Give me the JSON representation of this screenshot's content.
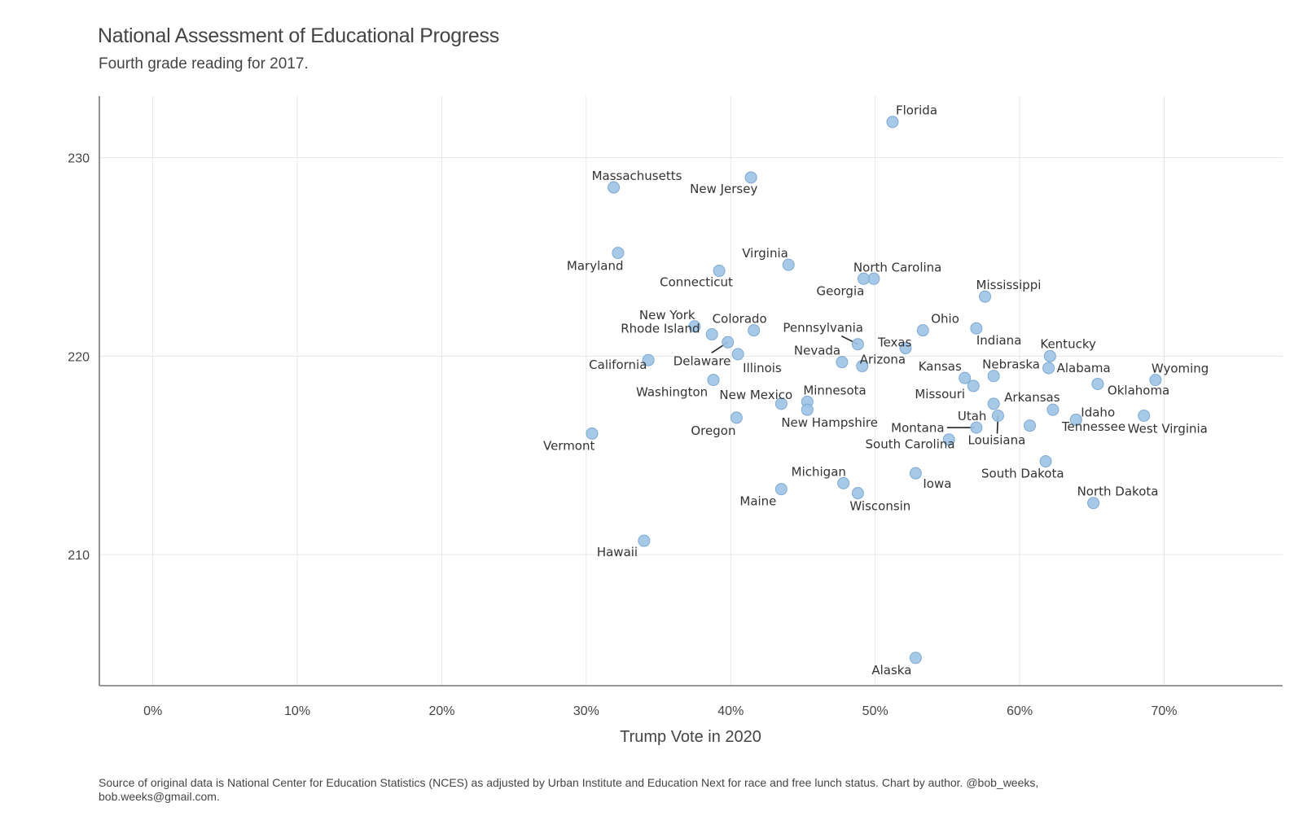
{
  "chart_data": {
    "type": "scatter",
    "title": "National Assessment of Educational Progress",
    "subtitle": "Fourth grade reading for 2017.",
    "xlabel": "Trump Vote in 2020",
    "ylabel": "",
    "xlim": [
      -0.037,
      0.782
    ],
    "ylim": [
      203.4,
      233.1
    ],
    "x_ticks": [
      0,
      0.1,
      0.2,
      0.3,
      0.4,
      0.5,
      0.6,
      0.7
    ],
    "x_tick_labels": [
      "0%",
      "10%",
      "20%",
      "30%",
      "40%",
      "50%",
      "60%",
      "70%"
    ],
    "y_ticks": [
      210,
      220,
      230
    ],
    "y_tick_labels": [
      "210",
      "220",
      "230"
    ],
    "grid": true,
    "legend": "none",
    "point_color": "#9dc3e6",
    "points": [
      {
        "label": "Florida",
        "x": 0.512,
        "y": 231.8
      },
      {
        "label": "New Jersey",
        "x": 0.414,
        "y": 229.0
      },
      {
        "label": "Massachusetts",
        "x": 0.319,
        "y": 228.5
      },
      {
        "label": "Maryland",
        "x": 0.322,
        "y": 225.2
      },
      {
        "label": "Virginia",
        "x": 0.44,
        "y": 224.6
      },
      {
        "label": "Connecticut",
        "x": 0.392,
        "y": 224.3
      },
      {
        "label": "North Carolina",
        "x": 0.499,
        "y": 223.9
      },
      {
        "label": "Georgia",
        "x": 0.492,
        "y": 223.9
      },
      {
        "label": "Mississippi",
        "x": 0.576,
        "y": 223.0
      },
      {
        "label": "New York",
        "x": 0.375,
        "y": 221.5
      },
      {
        "label": "Colorado",
        "x": 0.416,
        "y": 221.3
      },
      {
        "label": "Ohio",
        "x": 0.533,
        "y": 221.3
      },
      {
        "label": "Indiana",
        "x": 0.57,
        "y": 221.4
      },
      {
        "label": "Rhode Island",
        "x": 0.387,
        "y": 221.1
      },
      {
        "label": "Delaware",
        "x": 0.398,
        "y": 220.7
      },
      {
        "label": "Pennsylvania",
        "x": 0.488,
        "y": 220.6
      },
      {
        "label": "Texas",
        "x": 0.521,
        "y": 220.4
      },
      {
        "label": "Illinois",
        "x": 0.405,
        "y": 220.1
      },
      {
        "label": "Kentucky",
        "x": 0.621,
        "y": 220.0
      },
      {
        "label": "California",
        "x": 0.343,
        "y": 219.8
      },
      {
        "label": "Nevada",
        "x": 0.477,
        "y": 219.7
      },
      {
        "label": "Arizona",
        "x": 0.491,
        "y": 219.5
      },
      {
        "label": "Alabama",
        "x": 0.62,
        "y": 219.4
      },
      {
        "label": "Nebraska",
        "x": 0.582,
        "y": 219.0
      },
      {
        "label": "Kansas",
        "x": 0.562,
        "y": 218.9
      },
      {
        "label": "Washington",
        "x": 0.388,
        "y": 218.8
      },
      {
        "label": "Wyoming",
        "x": 0.694,
        "y": 218.8
      },
      {
        "label": "Oklahoma",
        "x": 0.654,
        "y": 218.6
      },
      {
        "label": "Missouri",
        "x": 0.568,
        "y": 218.5
      },
      {
        "label": "Minnesota",
        "x": 0.453,
        "y": 217.7
      },
      {
        "label": "New Mexico",
        "x": 0.435,
        "y": 217.6
      },
      {
        "label": "Arkansas",
        "x": 0.582,
        "y": 217.6
      },
      {
        "label": "Tennessee",
        "x": 0.623,
        "y": 217.3
      },
      {
        "label": "New Hampshire",
        "x": 0.453,
        "y": 217.3
      },
      {
        "label": "Louisiana",
        "x": 0.585,
        "y": 217.0
      },
      {
        "label": "West Virginia",
        "x": 0.686,
        "y": 217.0
      },
      {
        "label": "Oregon",
        "x": 0.404,
        "y": 216.9
      },
      {
        "label": "Idaho",
        "x": 0.639,
        "y": 216.8
      },
      {
        "label": "South Carolina",
        "x": 0.607,
        "y": 216.5
      },
      {
        "label": "Utah",
        "x": 0.57,
        "y": 216.4
      },
      {
        "label": "Vermont",
        "x": 0.304,
        "y": 216.1
      },
      {
        "label": "Montana",
        "x": 0.551,
        "y": 215.8
      },
      {
        "label": "South Dakota",
        "x": 0.618,
        "y": 214.7
      },
      {
        "label": "Iowa",
        "x": 0.528,
        "y": 214.1
      },
      {
        "label": "Michigan",
        "x": 0.478,
        "y": 213.6
      },
      {
        "label": "Maine",
        "x": 0.435,
        "y": 213.3
      },
      {
        "label": "Wisconsin",
        "x": 0.488,
        "y": 213.1
      },
      {
        "label": "North Dakota",
        "x": 0.651,
        "y": 212.6
      },
      {
        "label": "Hawaii",
        "x": 0.34,
        "y": 210.7
      },
      {
        "label": "Alaska",
        "x": 0.528,
        "y": 204.8
      }
    ],
    "caption": "Source of original data is National Center for Education Statistics (NCES) as adjusted by Urban Institute and Education Next for race and free lunch status. Chart by author. @bob_weeks, bob.weeks@gmail.com."
  }
}
